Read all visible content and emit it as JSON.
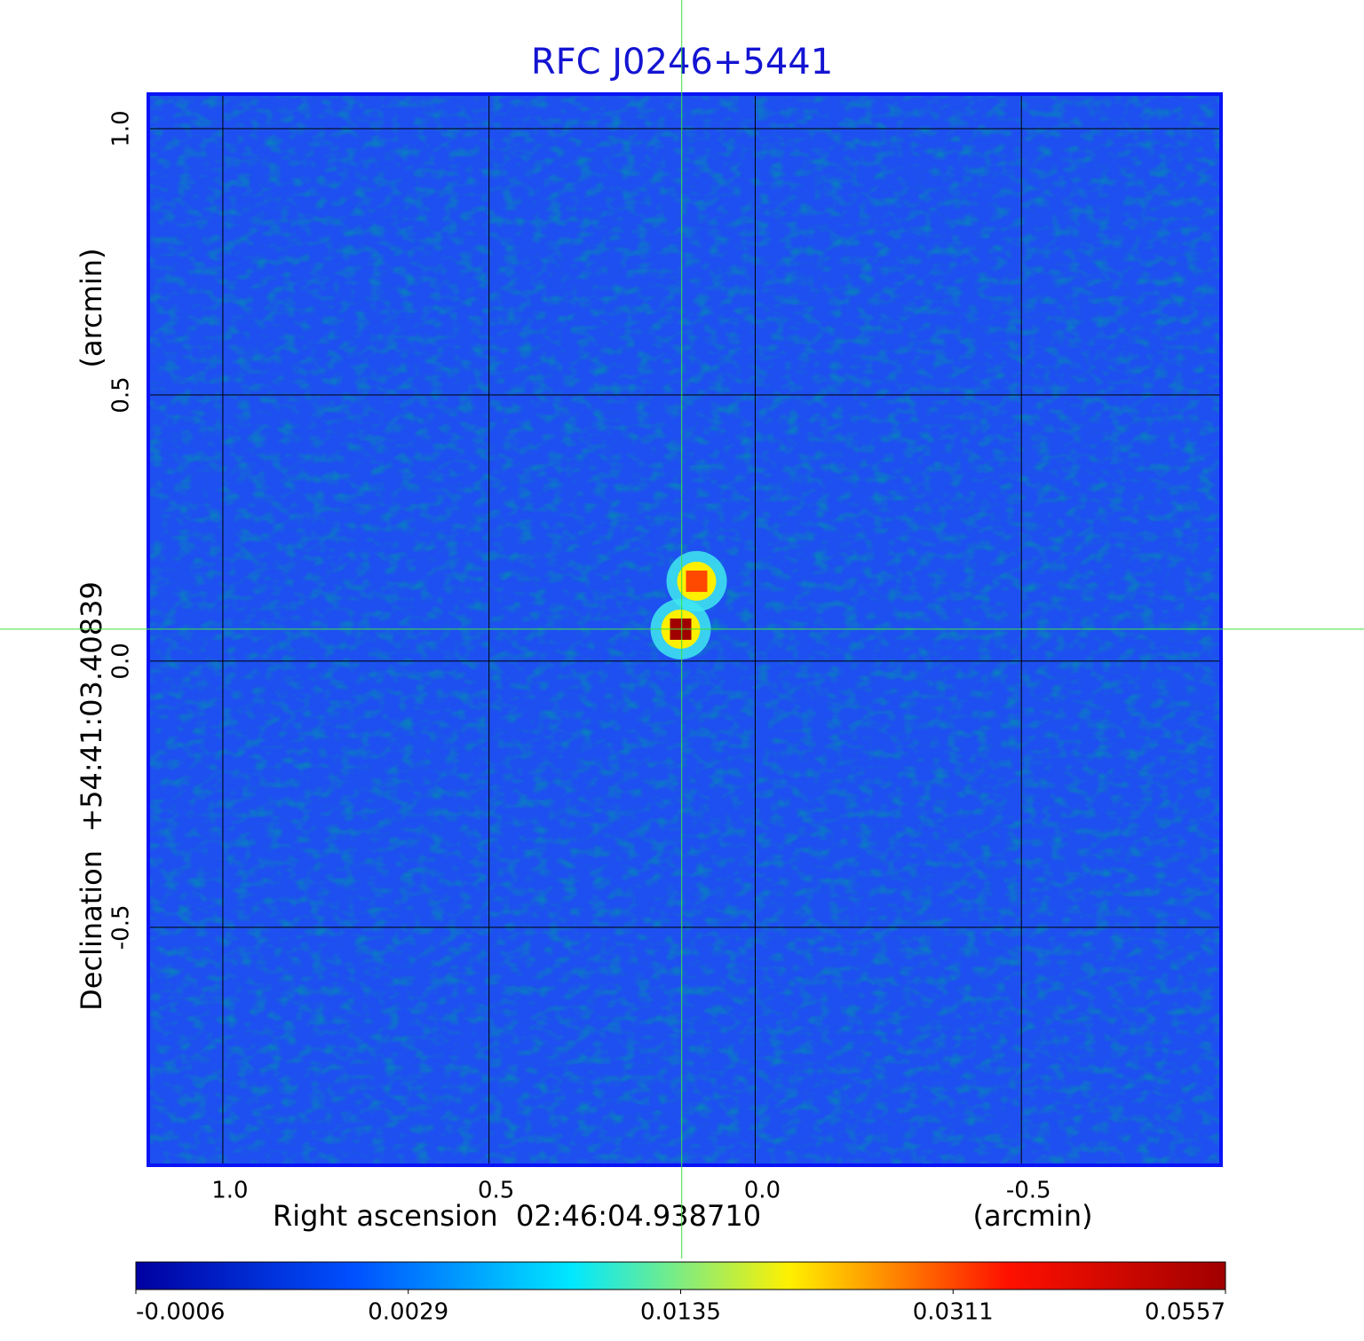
{
  "chart_data": {
    "type": "image",
    "title": "RFC J0246+5441",
    "x_label": "Right ascension  02:46:04.938710",
    "x_unit": "(arcmin)",
    "y_label": "Declination  +54:41:03.40839",
    "y_unit": "(arcmin)",
    "xlim": [
      1.14,
      -0.875
    ],
    "ylim": [
      -0.947,
      1.065
    ],
    "xticks": [
      {
        "value": 1,
        "label": "1.0"
      },
      {
        "value": 0.5,
        "label": "0.5"
      },
      {
        "value": 0,
        "label": "0.0"
      },
      {
        "value": -0.5,
        "label": "-0.5"
      }
    ],
    "yticks": [
      {
        "value": 1,
        "label": "1.0"
      },
      {
        "value": 0.5,
        "label": "0.5"
      },
      {
        "value": 0,
        "label": "0.0"
      },
      {
        "value": -0.5,
        "label": "-0.5"
      }
    ],
    "grid": true,
    "frame_color": "#0a14f5",
    "background_color": "#1e4ff0",
    "crosshair": {
      "x": 0.138,
      "y": 0.06,
      "color": "#3ee03e"
    },
    "sources": [
      {
        "x": 0.14,
        "y": 0.06,
        "value": 0.0557
      },
      {
        "x": 0.11,
        "y": 0.15,
        "value": 0.0311
      }
    ],
    "colorbar": {
      "ticks": [
        -0.0006,
        0.0029,
        0.0135,
        0.0311,
        0.0557
      ],
      "colors": [
        "#0000a0",
        "#0050ff",
        "#00e8ff",
        "#fff000",
        "#ff1000",
        "#a00000"
      ]
    }
  }
}
